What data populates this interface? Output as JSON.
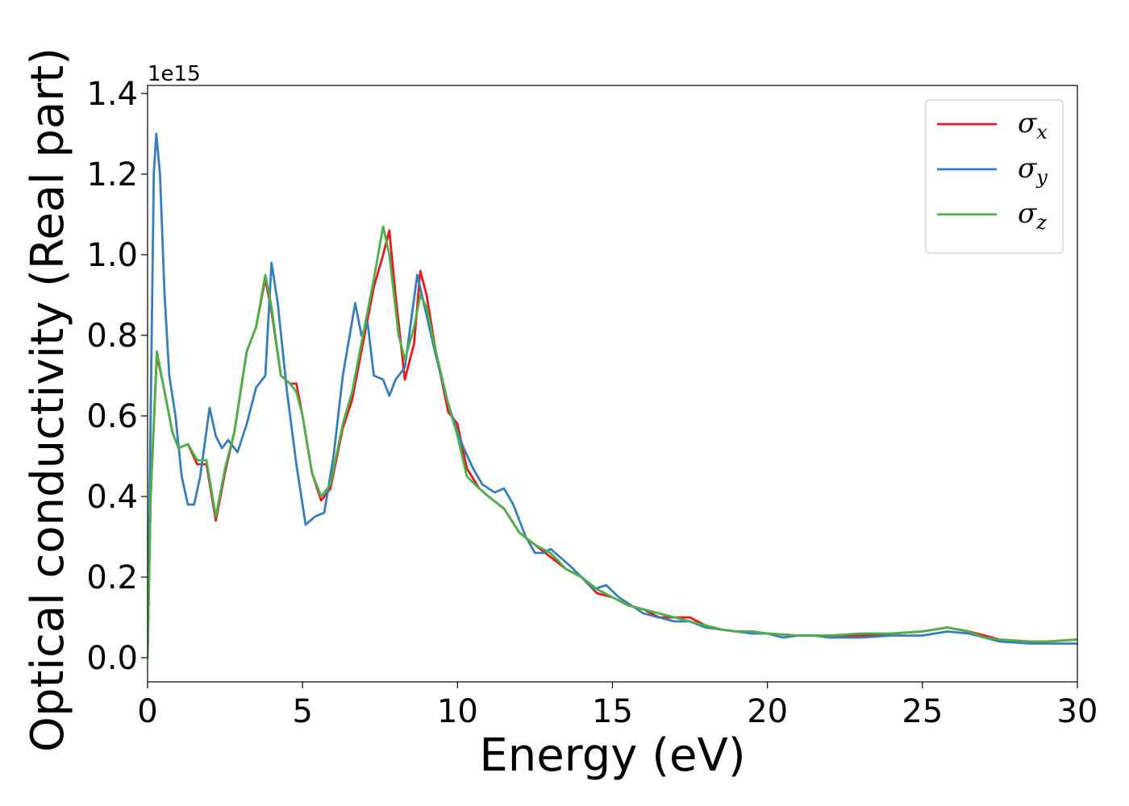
{
  "chart_data": {
    "type": "line",
    "xlabel": "Energy (eV)",
    "ylabel": "Optical conductivity (Real part)",
    "y_offset_label": "1e15",
    "xlim": [
      0,
      30
    ],
    "ylim": [
      -0.06,
      1.42
    ],
    "x_ticks": [
      0,
      5,
      10,
      15,
      20,
      25,
      30
    ],
    "y_ticks": [
      0.0,
      0.2,
      0.4,
      0.6,
      0.8,
      1.0,
      1.2,
      1.4
    ],
    "x_tick_labels": [
      "0",
      "5",
      "10",
      "15",
      "20",
      "25",
      "30"
    ],
    "y_tick_labels": [
      "0.0",
      "0.2",
      "0.4",
      "0.6",
      "0.8",
      "1.0",
      "1.2",
      "1.4"
    ],
    "grid": false,
    "legend_position": "top-right",
    "series": [
      {
        "name": "σx",
        "symbol": "σ",
        "subscript": "x",
        "color": "#e41a1c",
        "points": [
          [
            0,
            0
          ],
          [
            0.1,
            0.4
          ],
          [
            0.3,
            0.75
          ],
          [
            0.5,
            0.68
          ],
          [
            0.8,
            0.56
          ],
          [
            1.0,
            0.52
          ],
          [
            1.3,
            0.53
          ],
          [
            1.6,
            0.48
          ],
          [
            1.9,
            0.48
          ],
          [
            2.2,
            0.34
          ],
          [
            2.5,
            0.46
          ],
          [
            2.8,
            0.56
          ],
          [
            3.2,
            0.76
          ],
          [
            3.5,
            0.82
          ],
          [
            3.8,
            0.94
          ],
          [
            4.0,
            0.86
          ],
          [
            4.3,
            0.7
          ],
          [
            4.6,
            0.68
          ],
          [
            4.8,
            0.68
          ],
          [
            5.0,
            0.6
          ],
          [
            5.3,
            0.46
          ],
          [
            5.6,
            0.39
          ],
          [
            5.9,
            0.42
          ],
          [
            6.3,
            0.57
          ],
          [
            6.6,
            0.64
          ],
          [
            7.0,
            0.8
          ],
          [
            7.3,
            0.92
          ],
          [
            7.6,
            1.0
          ],
          [
            7.8,
            1.06
          ],
          [
            8.0,
            0.9
          ],
          [
            8.3,
            0.69
          ],
          [
            8.6,
            0.78
          ],
          [
            8.8,
            0.96
          ],
          [
            9.0,
            0.9
          ],
          [
            9.3,
            0.76
          ],
          [
            9.7,
            0.61
          ],
          [
            10.0,
            0.58
          ],
          [
            10.3,
            0.47
          ],
          [
            10.7,
            0.42
          ],
          [
            11.0,
            0.4
          ],
          [
            11.5,
            0.37
          ],
          [
            12.0,
            0.31
          ],
          [
            12.5,
            0.28
          ],
          [
            13.0,
            0.25
          ],
          [
            13.5,
            0.22
          ],
          [
            14.0,
            0.2
          ],
          [
            14.5,
            0.16
          ],
          [
            15.0,
            0.15
          ],
          [
            15.5,
            0.13
          ],
          [
            16.0,
            0.12
          ],
          [
            16.5,
            0.1
          ],
          [
            17.0,
            0.1
          ],
          [
            17.5,
            0.1
          ],
          [
            18.0,
            0.08
          ],
          [
            18.5,
            0.07
          ],
          [
            19.0,
            0.065
          ],
          [
            19.5,
            0.065
          ],
          [
            20.0,
            0.06
          ],
          [
            21.0,
            0.055
          ],
          [
            22.0,
            0.055
          ],
          [
            23.0,
            0.055
          ],
          [
            24.0,
            0.06
          ],
          [
            25.0,
            0.065
          ],
          [
            25.8,
            0.075
          ],
          [
            26.5,
            0.065
          ],
          [
            27.0,
            0.055
          ],
          [
            27.5,
            0.045
          ],
          [
            28.5,
            0.04
          ],
          [
            29.0,
            0.04
          ],
          [
            30.0,
            0.045
          ]
        ]
      },
      {
        "name": "σy",
        "symbol": "σ",
        "subscript": "y",
        "color": "#377eb8",
        "points": [
          [
            0,
            0
          ],
          [
            0.1,
            0.6
          ],
          [
            0.2,
            1.2
          ],
          [
            0.28,
            1.3
          ],
          [
            0.4,
            1.2
          ],
          [
            0.55,
            0.9
          ],
          [
            0.7,
            0.7
          ],
          [
            0.9,
            0.6
          ],
          [
            1.1,
            0.45
          ],
          [
            1.3,
            0.38
          ],
          [
            1.5,
            0.38
          ],
          [
            1.7,
            0.45
          ],
          [
            2.0,
            0.62
          ],
          [
            2.2,
            0.55
          ],
          [
            2.4,
            0.52
          ],
          [
            2.6,
            0.54
          ],
          [
            2.9,
            0.51
          ],
          [
            3.2,
            0.58
          ],
          [
            3.5,
            0.67
          ],
          [
            3.8,
            0.7
          ],
          [
            4.0,
            0.98
          ],
          [
            4.2,
            0.88
          ],
          [
            4.5,
            0.66
          ],
          [
            4.8,
            0.48
          ],
          [
            5.1,
            0.33
          ],
          [
            5.4,
            0.35
          ],
          [
            5.7,
            0.36
          ],
          [
            6.0,
            0.5
          ],
          [
            6.3,
            0.7
          ],
          [
            6.7,
            0.88
          ],
          [
            6.9,
            0.8
          ],
          [
            7.1,
            0.83
          ],
          [
            7.3,
            0.7
          ],
          [
            7.6,
            0.69
          ],
          [
            7.8,
            0.65
          ],
          [
            8.0,
            0.69
          ],
          [
            8.3,
            0.72
          ],
          [
            8.7,
            0.95
          ],
          [
            9.0,
            0.85
          ],
          [
            9.3,
            0.75
          ],
          [
            9.7,
            0.63
          ],
          [
            10.0,
            0.56
          ],
          [
            10.2,
            0.52
          ],
          [
            10.5,
            0.47
          ],
          [
            10.8,
            0.43
          ],
          [
            11.2,
            0.41
          ],
          [
            11.5,
            0.42
          ],
          [
            11.8,
            0.38
          ],
          [
            12.2,
            0.3
          ],
          [
            12.5,
            0.26
          ],
          [
            12.8,
            0.26
          ],
          [
            13.0,
            0.27
          ],
          [
            13.3,
            0.25
          ],
          [
            13.6,
            0.23
          ],
          [
            14.0,
            0.2
          ],
          [
            14.4,
            0.17
          ],
          [
            14.8,
            0.18
          ],
          [
            15.2,
            0.15
          ],
          [
            15.6,
            0.13
          ],
          [
            16.0,
            0.11
          ],
          [
            16.5,
            0.1
          ],
          [
            17.0,
            0.09
          ],
          [
            17.5,
            0.09
          ],
          [
            18.0,
            0.075
          ],
          [
            18.5,
            0.07
          ],
          [
            19.0,
            0.065
          ],
          [
            19.5,
            0.06
          ],
          [
            20.0,
            0.06
          ],
          [
            20.5,
            0.05
          ],
          [
            21.0,
            0.055
          ],
          [
            21.5,
            0.055
          ],
          [
            22.0,
            0.05
          ],
          [
            23.0,
            0.05
          ],
          [
            24.0,
            0.055
          ],
          [
            25.0,
            0.055
          ],
          [
            25.8,
            0.065
          ],
          [
            26.5,
            0.06
          ],
          [
            27.0,
            0.05
          ],
          [
            27.5,
            0.04
          ],
          [
            28.5,
            0.035
          ],
          [
            29.0,
            0.035
          ],
          [
            29.5,
            0.035
          ],
          [
            30.0,
            0.035
          ]
        ]
      },
      {
        "name": "σz",
        "symbol": "σ",
        "subscript": "z",
        "color": "#4daf4a",
        "points": [
          [
            0,
            0
          ],
          [
            0.1,
            0.4
          ],
          [
            0.3,
            0.76
          ],
          [
            0.5,
            0.68
          ],
          [
            0.8,
            0.56
          ],
          [
            1.0,
            0.52
          ],
          [
            1.3,
            0.53
          ],
          [
            1.6,
            0.49
          ],
          [
            1.9,
            0.49
          ],
          [
            2.2,
            0.35
          ],
          [
            2.5,
            0.47
          ],
          [
            2.8,
            0.56
          ],
          [
            3.2,
            0.76
          ],
          [
            3.5,
            0.82
          ],
          [
            3.8,
            0.95
          ],
          [
            4.0,
            0.87
          ],
          [
            4.3,
            0.7
          ],
          [
            4.6,
            0.68
          ],
          [
            4.8,
            0.66
          ],
          [
            5.0,
            0.6
          ],
          [
            5.3,
            0.46
          ],
          [
            5.6,
            0.4
          ],
          [
            5.9,
            0.43
          ],
          [
            6.3,
            0.58
          ],
          [
            6.6,
            0.66
          ],
          [
            7.0,
            0.82
          ],
          [
            7.3,
            0.94
          ],
          [
            7.6,
            1.07
          ],
          [
            7.8,
            1.0
          ],
          [
            8.1,
            0.8
          ],
          [
            8.3,
            0.74
          ],
          [
            8.6,
            0.82
          ],
          [
            8.8,
            0.9
          ],
          [
            9.0,
            0.87
          ],
          [
            9.3,
            0.76
          ],
          [
            9.7,
            0.63
          ],
          [
            10.0,
            0.55
          ],
          [
            10.3,
            0.45
          ],
          [
            10.7,
            0.42
          ],
          [
            11.0,
            0.4
          ],
          [
            11.5,
            0.37
          ],
          [
            12.0,
            0.31
          ],
          [
            12.5,
            0.28
          ],
          [
            13.0,
            0.26
          ],
          [
            13.5,
            0.22
          ],
          [
            14.0,
            0.2
          ],
          [
            14.5,
            0.17
          ],
          [
            15.0,
            0.15
          ],
          [
            15.5,
            0.13
          ],
          [
            16.0,
            0.12
          ],
          [
            16.5,
            0.11
          ],
          [
            17.0,
            0.1
          ],
          [
            17.5,
            0.09
          ],
          [
            18.0,
            0.08
          ],
          [
            18.5,
            0.07
          ],
          [
            19.0,
            0.065
          ],
          [
            19.5,
            0.065
          ],
          [
            20.0,
            0.06
          ],
          [
            21.0,
            0.055
          ],
          [
            22.0,
            0.055
          ],
          [
            23.0,
            0.06
          ],
          [
            24.0,
            0.06
          ],
          [
            25.0,
            0.065
          ],
          [
            25.8,
            0.075
          ],
          [
            26.5,
            0.065
          ],
          [
            27.0,
            0.05
          ],
          [
            27.5,
            0.045
          ],
          [
            28.5,
            0.04
          ],
          [
            29.0,
            0.04
          ],
          [
            30.0,
            0.045
          ]
        ]
      }
    ]
  }
}
